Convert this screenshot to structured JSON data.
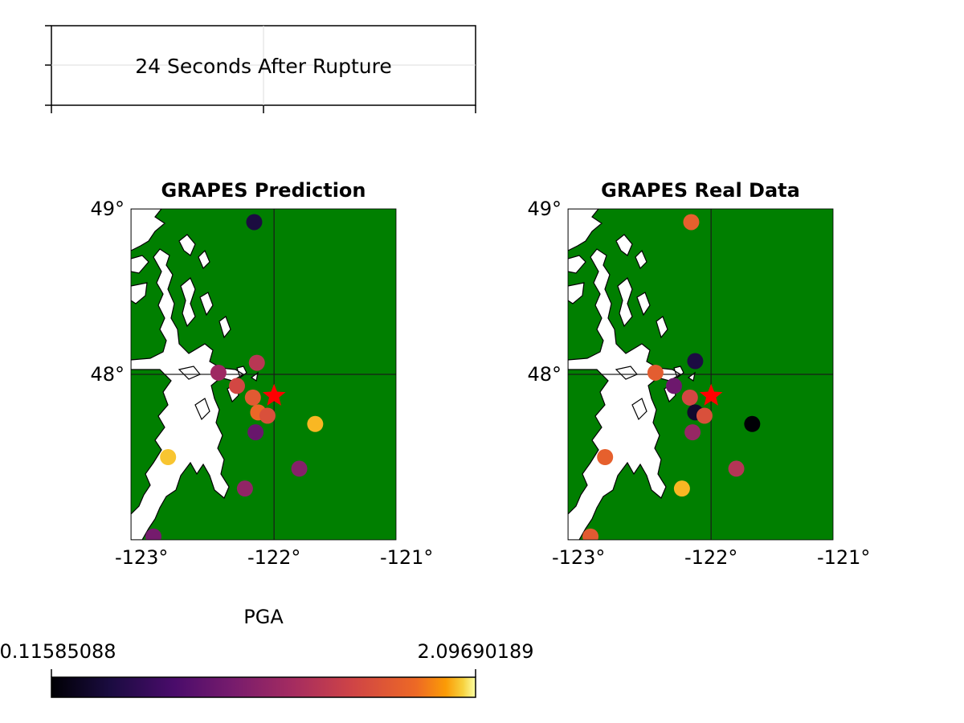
{
  "banner": {
    "text": "24 Seconds After Rupture"
  },
  "colorbar": {
    "label": "PGA",
    "min_label": "0.11585088",
    "max_label": "2.09690189",
    "min": 0.11585088,
    "max": 2.09690189,
    "colormap": "inferno"
  },
  "axes": {
    "x_ticks": [
      "-123°",
      "-122°",
      "-121°"
    ],
    "y_ticks": [
      "48°",
      "49°"
    ],
    "lon_range": [
      -123.0,
      -121.0
    ],
    "lat_range": [
      47.0,
      49.0
    ]
  },
  "colors": {
    "land": "#007f00",
    "water": "#ffffff",
    "epicenter": "#ff0000",
    "gridline": "#1a1a1a"
  },
  "epicenter": {
    "lon": -122.0,
    "lat": 47.87
  },
  "panels": [
    {
      "id": "prediction",
      "title": "GRAPES Prediction",
      "stations": [
        {
          "lon": -122.15,
          "lat": 48.92,
          "pga": 0.39
        },
        {
          "lon": -122.13,
          "lat": 48.07,
          "pga": 1.37
        },
        {
          "lon": -122.42,
          "lat": 48.01,
          "pga": 1.2
        },
        {
          "lon": -122.28,
          "lat": 47.93,
          "pga": 1.55
        },
        {
          "lon": -122.16,
          "lat": 47.86,
          "pga": 1.7
        },
        {
          "lon": -122.12,
          "lat": 47.77,
          "pga": 1.8
        },
        {
          "lon": -122.05,
          "lat": 47.75,
          "pga": 1.62
        },
        {
          "lon": -121.69,
          "lat": 47.7,
          "pga": 2.0
        },
        {
          "lon": -122.14,
          "lat": 47.65,
          "pga": 0.87
        },
        {
          "lon": -122.8,
          "lat": 47.5,
          "pga": 2.02
        },
        {
          "lon": -121.81,
          "lat": 47.43,
          "pga": 1.05
        },
        {
          "lon": -122.22,
          "lat": 47.31,
          "pga": 1.12
        },
        {
          "lon": -122.91,
          "lat": 47.02,
          "pga": 0.95
        }
      ]
    },
    {
      "id": "real",
      "title": "GRAPES Real Data",
      "stations": [
        {
          "lon": -122.15,
          "lat": 48.92,
          "pga": 1.75
        },
        {
          "lon": -122.12,
          "lat": 48.08,
          "pga": 0.4
        },
        {
          "lon": -122.42,
          "lat": 48.01,
          "pga": 1.72
        },
        {
          "lon": -122.28,
          "lat": 47.93,
          "pga": 0.9
        },
        {
          "lon": -122.16,
          "lat": 47.86,
          "pga": 1.55
        },
        {
          "lon": -122.12,
          "lat": 47.77,
          "pga": 0.3
        },
        {
          "lon": -122.05,
          "lat": 47.75,
          "pga": 1.62
        },
        {
          "lon": -121.69,
          "lat": 47.7,
          "pga": 0.12
        },
        {
          "lon": -122.14,
          "lat": 47.65,
          "pga": 1.15
        },
        {
          "lon": -122.8,
          "lat": 47.5,
          "pga": 1.75
        },
        {
          "lon": -121.81,
          "lat": 47.43,
          "pga": 1.35
        },
        {
          "lon": -122.22,
          "lat": 47.31,
          "pga": 2.0
        },
        {
          "lon": -122.91,
          "lat": 47.02,
          "pga": 1.7
        }
      ]
    }
  ]
}
